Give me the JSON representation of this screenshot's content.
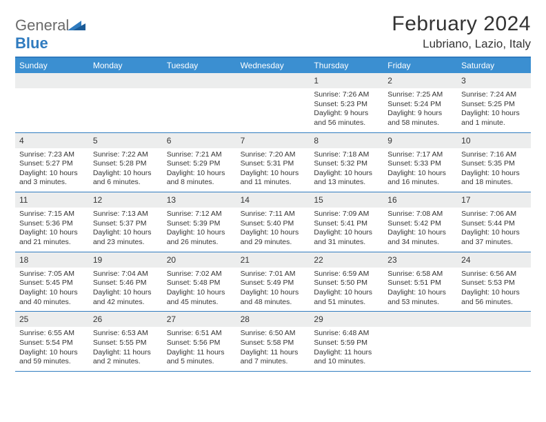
{
  "logo": {
    "text1": "General",
    "text2": "Blue"
  },
  "title": "February 2024",
  "location": "Lubriano, Lazio, Italy",
  "colors": {
    "header_bg": "#3b8fd1",
    "border": "#2f7bbf",
    "daynum_bg": "#eceded",
    "text": "#333333",
    "white": "#ffffff"
  },
  "day_names": [
    "Sunday",
    "Monday",
    "Tuesday",
    "Wednesday",
    "Thursday",
    "Friday",
    "Saturday"
  ],
  "weeks": [
    [
      {
        "n": "",
        "empty": true
      },
      {
        "n": "",
        "empty": true
      },
      {
        "n": "",
        "empty": true
      },
      {
        "n": "",
        "empty": true
      },
      {
        "n": "1",
        "sr": "Sunrise: 7:26 AM",
        "ss": "Sunset: 5:23 PM",
        "dl1": "Daylight: 9 hours",
        "dl2": "and 56 minutes."
      },
      {
        "n": "2",
        "sr": "Sunrise: 7:25 AM",
        "ss": "Sunset: 5:24 PM",
        "dl1": "Daylight: 9 hours",
        "dl2": "and 58 minutes."
      },
      {
        "n": "3",
        "sr": "Sunrise: 7:24 AM",
        "ss": "Sunset: 5:25 PM",
        "dl1": "Daylight: 10 hours",
        "dl2": "and 1 minute."
      }
    ],
    [
      {
        "n": "4",
        "sr": "Sunrise: 7:23 AM",
        "ss": "Sunset: 5:27 PM",
        "dl1": "Daylight: 10 hours",
        "dl2": "and 3 minutes."
      },
      {
        "n": "5",
        "sr": "Sunrise: 7:22 AM",
        "ss": "Sunset: 5:28 PM",
        "dl1": "Daylight: 10 hours",
        "dl2": "and 6 minutes."
      },
      {
        "n": "6",
        "sr": "Sunrise: 7:21 AM",
        "ss": "Sunset: 5:29 PM",
        "dl1": "Daylight: 10 hours",
        "dl2": "and 8 minutes."
      },
      {
        "n": "7",
        "sr": "Sunrise: 7:20 AM",
        "ss": "Sunset: 5:31 PM",
        "dl1": "Daylight: 10 hours",
        "dl2": "and 11 minutes."
      },
      {
        "n": "8",
        "sr": "Sunrise: 7:18 AM",
        "ss": "Sunset: 5:32 PM",
        "dl1": "Daylight: 10 hours",
        "dl2": "and 13 minutes."
      },
      {
        "n": "9",
        "sr": "Sunrise: 7:17 AM",
        "ss": "Sunset: 5:33 PM",
        "dl1": "Daylight: 10 hours",
        "dl2": "and 16 minutes."
      },
      {
        "n": "10",
        "sr": "Sunrise: 7:16 AM",
        "ss": "Sunset: 5:35 PM",
        "dl1": "Daylight: 10 hours",
        "dl2": "and 18 minutes."
      }
    ],
    [
      {
        "n": "11",
        "sr": "Sunrise: 7:15 AM",
        "ss": "Sunset: 5:36 PM",
        "dl1": "Daylight: 10 hours",
        "dl2": "and 21 minutes."
      },
      {
        "n": "12",
        "sr": "Sunrise: 7:13 AM",
        "ss": "Sunset: 5:37 PM",
        "dl1": "Daylight: 10 hours",
        "dl2": "and 23 minutes."
      },
      {
        "n": "13",
        "sr": "Sunrise: 7:12 AM",
        "ss": "Sunset: 5:39 PM",
        "dl1": "Daylight: 10 hours",
        "dl2": "and 26 minutes."
      },
      {
        "n": "14",
        "sr": "Sunrise: 7:11 AM",
        "ss": "Sunset: 5:40 PM",
        "dl1": "Daylight: 10 hours",
        "dl2": "and 29 minutes."
      },
      {
        "n": "15",
        "sr": "Sunrise: 7:09 AM",
        "ss": "Sunset: 5:41 PM",
        "dl1": "Daylight: 10 hours",
        "dl2": "and 31 minutes."
      },
      {
        "n": "16",
        "sr": "Sunrise: 7:08 AM",
        "ss": "Sunset: 5:42 PM",
        "dl1": "Daylight: 10 hours",
        "dl2": "and 34 minutes."
      },
      {
        "n": "17",
        "sr": "Sunrise: 7:06 AM",
        "ss": "Sunset: 5:44 PM",
        "dl1": "Daylight: 10 hours",
        "dl2": "and 37 minutes."
      }
    ],
    [
      {
        "n": "18",
        "sr": "Sunrise: 7:05 AM",
        "ss": "Sunset: 5:45 PM",
        "dl1": "Daylight: 10 hours",
        "dl2": "and 40 minutes."
      },
      {
        "n": "19",
        "sr": "Sunrise: 7:04 AM",
        "ss": "Sunset: 5:46 PM",
        "dl1": "Daylight: 10 hours",
        "dl2": "and 42 minutes."
      },
      {
        "n": "20",
        "sr": "Sunrise: 7:02 AM",
        "ss": "Sunset: 5:48 PM",
        "dl1": "Daylight: 10 hours",
        "dl2": "and 45 minutes."
      },
      {
        "n": "21",
        "sr": "Sunrise: 7:01 AM",
        "ss": "Sunset: 5:49 PM",
        "dl1": "Daylight: 10 hours",
        "dl2": "and 48 minutes."
      },
      {
        "n": "22",
        "sr": "Sunrise: 6:59 AM",
        "ss": "Sunset: 5:50 PM",
        "dl1": "Daylight: 10 hours",
        "dl2": "and 51 minutes."
      },
      {
        "n": "23",
        "sr": "Sunrise: 6:58 AM",
        "ss": "Sunset: 5:51 PM",
        "dl1": "Daylight: 10 hours",
        "dl2": "and 53 minutes."
      },
      {
        "n": "24",
        "sr": "Sunrise: 6:56 AM",
        "ss": "Sunset: 5:53 PM",
        "dl1": "Daylight: 10 hours",
        "dl2": "and 56 minutes."
      }
    ],
    [
      {
        "n": "25",
        "sr": "Sunrise: 6:55 AM",
        "ss": "Sunset: 5:54 PM",
        "dl1": "Daylight: 10 hours",
        "dl2": "and 59 minutes."
      },
      {
        "n": "26",
        "sr": "Sunrise: 6:53 AM",
        "ss": "Sunset: 5:55 PM",
        "dl1": "Daylight: 11 hours",
        "dl2": "and 2 minutes."
      },
      {
        "n": "27",
        "sr": "Sunrise: 6:51 AM",
        "ss": "Sunset: 5:56 PM",
        "dl1": "Daylight: 11 hours",
        "dl2": "and 5 minutes."
      },
      {
        "n": "28",
        "sr": "Sunrise: 6:50 AM",
        "ss": "Sunset: 5:58 PM",
        "dl1": "Daylight: 11 hours",
        "dl2": "and 7 minutes."
      },
      {
        "n": "29",
        "sr": "Sunrise: 6:48 AM",
        "ss": "Sunset: 5:59 PM",
        "dl1": "Daylight: 11 hours",
        "dl2": "and 10 minutes."
      },
      {
        "n": "",
        "empty": true
      },
      {
        "n": "",
        "empty": true
      }
    ]
  ]
}
